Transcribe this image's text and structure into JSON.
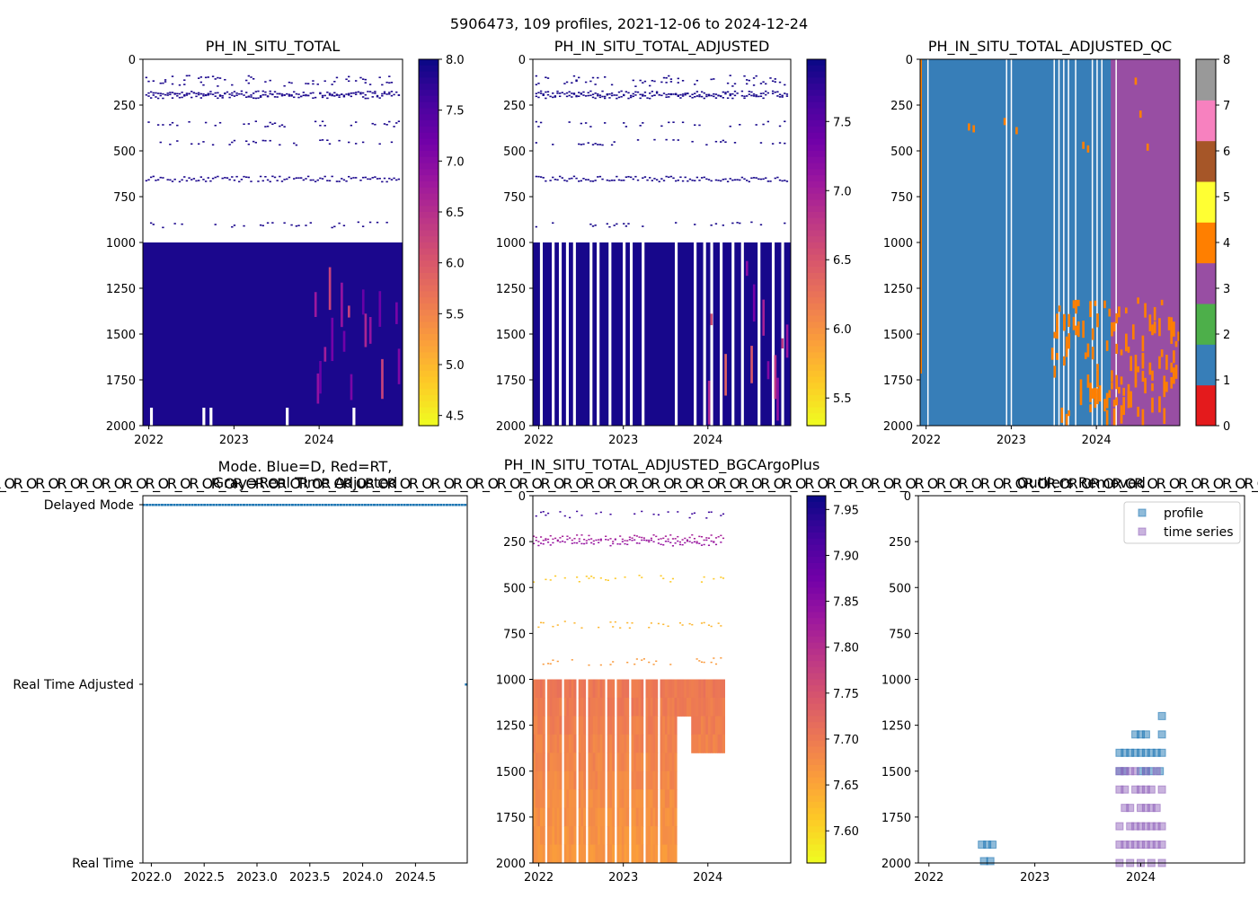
{
  "figure": {
    "suptitle": "5906473, 109 profiles, 2021-12-06 to 2024-12-24"
  },
  "chart_data": [
    {
      "type": "heatmap",
      "title": "PH_IN_SITU_TOTAL",
      "ylim": [
        2000,
        0
      ],
      "yticks": [
        "0",
        "250",
        "500",
        "750",
        "1000",
        "1250",
        "1500",
        "1750",
        "2000"
      ],
      "xticks": [
        "2022",
        "2023",
        "2024"
      ],
      "colorbar": {
        "colormap": "plasma_r",
        "range": [
          4.4,
          8.0
        ],
        "ticks": [
          "4.5",
          "5.0",
          "5.5",
          "6.0",
          "6.5",
          "7.0",
          "7.5",
          "8.0"
        ]
      },
      "sparse_depths": [
        100,
        130,
        185,
        195,
        350,
        450,
        650,
        900
      ],
      "dense_range": [
        1000,
        2000
      ],
      "value": 7.9
    },
    {
      "type": "heatmap",
      "title": "PH_IN_SITU_TOTAL_ADJUSTED",
      "ylim": [
        2000,
        0
      ],
      "yticks": [
        "0",
        "250",
        "500",
        "750",
        "1000",
        "1250",
        "1500",
        "1750",
        "2000"
      ],
      "xticks": [
        "2022",
        "2023",
        "2024"
      ],
      "colorbar": {
        "colormap": "plasma_r",
        "range": [
          5.3,
          7.95
        ],
        "ticks": [
          "5.5",
          "6.0",
          "6.5",
          "7.0",
          "7.5"
        ]
      },
      "sparse_depths": [
        100,
        130,
        185,
        195,
        350,
        450,
        650,
        900
      ],
      "dense_range": [
        1000,
        2000
      ],
      "value": 7.9
    },
    {
      "type": "heatmap",
      "title": "PH_IN_SITU_TOTAL_ADJUSTED_QC",
      "ylim": [
        2000,
        0
      ],
      "yticks": [
        "0",
        "250",
        "500",
        "750",
        "1000",
        "1250",
        "1500",
        "1750",
        "2000"
      ],
      "xticks": [
        "2022",
        "2023",
        "2024"
      ],
      "colorbar": {
        "colormap": "qc-categorical",
        "ticks": [
          "0",
          "1",
          "2",
          "3",
          "4",
          "5",
          "6",
          "7",
          "8"
        ],
        "colors": [
          "#e41a1c",
          "#377eb8",
          "#4daf4a",
          "#984ea3",
          "#ff7f00",
          "#ffff33",
          "#a65628",
          "#f781bf",
          "#999999"
        ]
      },
      "flag_values": {
        "main": 1,
        "late": 3,
        "outlier": 4
      }
    },
    {
      "type": "scatter",
      "title": "Mode. Blue=D, Red=RT,",
      "title2": "Gray=Real Time Adjusted",
      "yticks": [
        "Delayed Mode",
        "Real Time Adjusted",
        "Real Time"
      ],
      "xticks": [
        "2022.0",
        "2022.5",
        "2023.0",
        "2023.5",
        "2024.0",
        "2024.5"
      ],
      "xlim": [
        2021.92,
        2024.99
      ],
      "delayed_range": [
        2021.93,
        2024.97
      ],
      "rt_adjusted_x": [
        2024.98
      ],
      "marker_color": "#1f77b4"
    },
    {
      "type": "heatmap",
      "title": "PH_IN_SITU_TOTAL_ADJUSTED_BGCArgoPlus",
      "ylim": [
        2000,
        0
      ],
      "yticks": [
        "0",
        "250",
        "500",
        "750",
        "1000",
        "1250",
        "1500",
        "1750",
        "2000"
      ],
      "xticks": [
        "2022",
        "2023",
        "2024"
      ],
      "colorbar": {
        "colormap": "plasma_r",
        "range": [
          7.565,
          7.965
        ],
        "ticks": [
          "7.60",
          "7.65",
          "7.70",
          "7.75",
          "7.80",
          "7.85",
          "7.90",
          "7.95"
        ]
      },
      "layers": [
        {
          "depth": 100,
          "value": 7.93
        },
        {
          "depth": 230,
          "value": 7.82
        },
        {
          "depth": 250,
          "value": 7.84
        },
        {
          "depth": 450,
          "value": 7.61
        },
        {
          "depth": 700,
          "value": 7.63
        },
        {
          "depth": 900,
          "value": 7.66
        }
      ],
      "deep_value": 7.7
    },
    {
      "type": "scatter",
      "title": "Outliers Removed",
      "ylim": [
        2000,
        0
      ],
      "yticks": [
        "0",
        "250",
        "500",
        "750",
        "1000",
        "1250",
        "1500",
        "1750",
        "2000"
      ],
      "xticks": [
        "2022",
        "2023",
        "2024"
      ],
      "legend": {
        "placement": "top-right",
        "entries": [
          "profile",
          "time series"
        ]
      },
      "series": [
        {
          "name": "profile",
          "color": "#1f77b4",
          "points": [
            [
              2022.5,
              1900
            ],
            [
              2022.55,
              1900
            ],
            [
              2022.6,
              1900
            ],
            [
              2022.52,
              1990
            ],
            [
              2022.58,
              1990
            ],
            [
              2023.8,
              1400
            ],
            [
              2023.85,
              1400
            ],
            [
              2023.9,
              1400
            ],
            [
              2023.95,
              1400
            ],
            [
              2024.0,
              1400
            ],
            [
              2024.05,
              1400
            ],
            [
              2024.1,
              1400
            ],
            [
              2024.15,
              1400
            ],
            [
              2024.2,
              1400
            ],
            [
              2023.95,
              1300
            ],
            [
              2024.0,
              1300
            ],
            [
              2024.05,
              1300
            ],
            [
              2024.2,
              1300
            ],
            [
              2024.2,
              1200
            ],
            [
              2023.8,
              1500
            ],
            [
              2023.85,
              1500
            ],
            [
              2024.0,
              1500
            ],
            [
              2024.05,
              1500
            ],
            [
              2024.1,
              1500
            ],
            [
              2024.18,
              1500
            ]
          ]
        },
        {
          "name": "time series",
          "color": "#9467bd",
          "points": [
            [
              2023.8,
              1500
            ],
            [
              2023.85,
              1500
            ],
            [
              2023.9,
              1500
            ],
            [
              2023.95,
              1500
            ],
            [
              2024.05,
              1500
            ],
            [
              2024.15,
              1500
            ],
            [
              2023.8,
              1600
            ],
            [
              2023.85,
              1600
            ],
            [
              2023.95,
              1600
            ],
            [
              2024.0,
              1600
            ],
            [
              2024.05,
              1600
            ],
            [
              2024.1,
              1600
            ],
            [
              2024.2,
              1600
            ],
            [
              2023.85,
              1700
            ],
            [
              2023.9,
              1700
            ],
            [
              2024.0,
              1700
            ],
            [
              2024.05,
              1700
            ],
            [
              2024.1,
              1700
            ],
            [
              2024.15,
              1700
            ],
            [
              2023.8,
              1800
            ],
            [
              2023.9,
              1800
            ],
            [
              2023.95,
              1800
            ],
            [
              2024.0,
              1800
            ],
            [
              2024.05,
              1800
            ],
            [
              2024.1,
              1800
            ],
            [
              2024.15,
              1800
            ],
            [
              2024.2,
              1800
            ],
            [
              2023.8,
              1900
            ],
            [
              2023.85,
              1900
            ],
            [
              2023.9,
              1900
            ],
            [
              2023.95,
              1900
            ],
            [
              2024.0,
              1900
            ],
            [
              2024.05,
              1900
            ],
            [
              2024.1,
              1900
            ],
            [
              2024.15,
              1900
            ],
            [
              2024.2,
              1900
            ],
            [
              2023.8,
              2000
            ],
            [
              2023.9,
              2000
            ],
            [
              2024.0,
              2000
            ],
            [
              2024.1,
              2000
            ],
            [
              2024.2,
              2000
            ]
          ]
        }
      ]
    }
  ],
  "overlap_text": {
    "left": "OR_OR_OR_OR_OR_OR_OR_OR_OR_OR_OR_OR_OR_OR_OR_OR_OR_OR_OR_OR_OR_OR_OR_OR_OR_OR_OR_OR_OR_OR_OR_OR_OR_OR_OR_OR_OR_OR_OR_OR_OR_OR_OR_OR_OR_OR_OR_OR_OR_OR_OR_OR_OR_OR_OR_OR_OR_OR_OR"
  }
}
